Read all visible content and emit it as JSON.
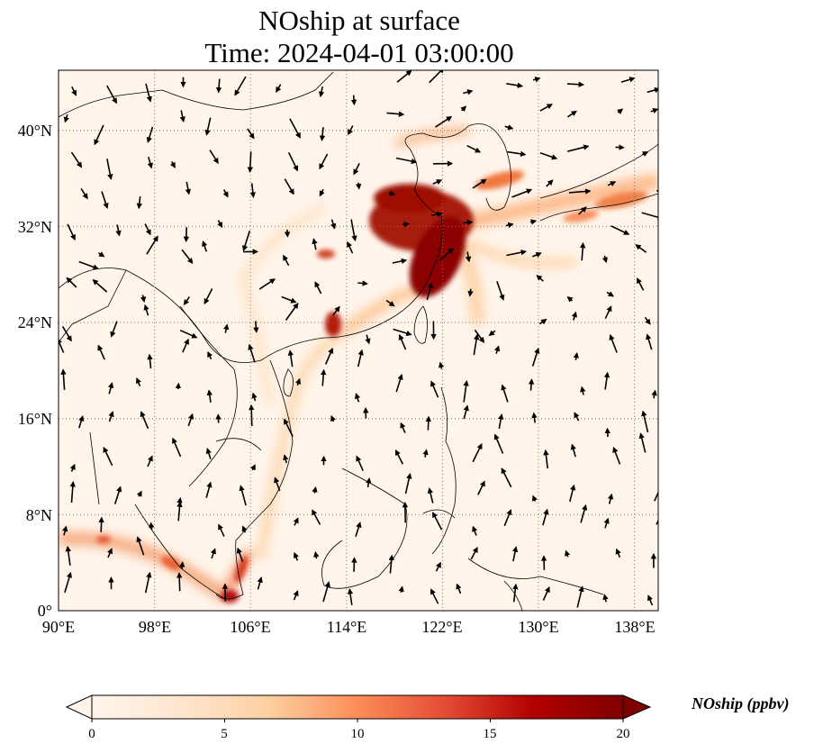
{
  "title": {
    "line1": "NOship at surface",
    "line2": "Time: 2024-04-01 03:00:00"
  },
  "axes": {
    "x_ticks": [
      "90°E",
      "98°E",
      "106°E",
      "114°E",
      "122°E",
      "130°E",
      "138°E"
    ],
    "y_ticks": [
      "40°N",
      "32°N",
      "24°N",
      "16°N",
      "8°N",
      "0°"
    ],
    "lon_range": [
      90,
      140
    ],
    "lat_range": [
      0,
      45
    ],
    "gridlines": "dotted"
  },
  "colorbar": {
    "label": "NOship (ppbv)",
    "ticks": [
      "0",
      "5",
      "10",
      "15",
      "20"
    ],
    "range": [
      0,
      20
    ],
    "colormap": [
      "#fff5eb",
      "#fdd8b0",
      "#fdae6b",
      "#f16913",
      "#d94801",
      "#a63603",
      "#7f0000"
    ],
    "extend": "both"
  },
  "colors": {
    "background": "#fff5eb",
    "high": "#7f0000",
    "coast": "#000000"
  }
}
